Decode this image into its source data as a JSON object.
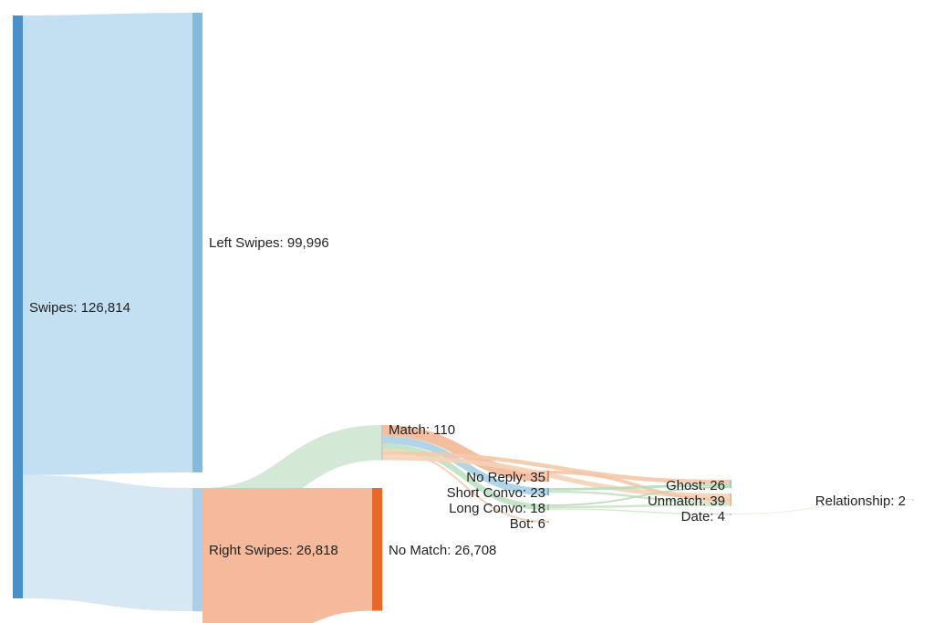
{
  "chart_data": {
    "type": "sankey",
    "nodes": [
      {
        "id": "swipes",
        "label": "Swipes: 126,814",
        "value": 126814,
        "color": "#4a8fc7"
      },
      {
        "id": "left",
        "label": "Left Swipes: 99,996",
        "value": 99996,
        "color": "#85b9de"
      },
      {
        "id": "right",
        "label": "Right Swipes: 26,818",
        "value": 26818,
        "color": "#a9d0e8"
      },
      {
        "id": "match",
        "label": "Match: 110",
        "value": 110,
        "color": "#c8c8c8"
      },
      {
        "id": "nomatch",
        "label": "No Match: 26,708",
        "value": 26708,
        "color": "#e8682a"
      },
      {
        "id": "noreply",
        "label": "No Reply: 35",
        "value": 35,
        "color": "#e98b5f"
      },
      {
        "id": "shortconvo",
        "label": "Short Convo: 23",
        "value": 23,
        "color": "#7ab0d6"
      },
      {
        "id": "longconvo",
        "label": "Long Convo: 18",
        "value": 18,
        "color": "#93c98e"
      },
      {
        "id": "bot",
        "label": "Bot: 6",
        "value": 6,
        "color": "#f2a272"
      },
      {
        "id": "ghost",
        "label": "Ghost: 26",
        "value": 26,
        "color": "#9ed3a8"
      },
      {
        "id": "unmatch",
        "label": "Unmatch: 39",
        "value": 39,
        "color": "#f2b68c"
      },
      {
        "id": "date",
        "label": "Date: 4",
        "value": 4,
        "color": "#b9dcae"
      },
      {
        "id": "relationship",
        "label": "Relationship: 2",
        "value": 2,
        "color": "#d6e8c8"
      }
    ],
    "links": [
      {
        "source": "swipes",
        "target": "left",
        "value": 99996,
        "color": "#c3dff2"
      },
      {
        "source": "swipes",
        "target": "right",
        "value": 26818,
        "color": "#d6e8f4"
      },
      {
        "source": "right",
        "target": "match",
        "value": 110,
        "color": "#cfe6d2"
      },
      {
        "source": "right",
        "target": "nomatch",
        "value": 26708,
        "color": "#f5b99b"
      },
      {
        "source": "match",
        "target": "noreply",
        "value": 35,
        "color": "#f2b896"
      },
      {
        "source": "match",
        "target": "shortconvo",
        "value": 23,
        "color": "#a9cfe6"
      },
      {
        "source": "match",
        "target": "longconvo",
        "value": 18,
        "color": "#bfe0c0"
      },
      {
        "source": "match",
        "target": "bot",
        "value": 6,
        "color": "#f6cdb3"
      },
      {
        "source": "match",
        "target": "ghost",
        "value": 13,
        "color": "#f4c9a8"
      },
      {
        "source": "match",
        "target": "unmatch",
        "value": 15,
        "color": "#f6d2b8"
      },
      {
        "source": "noreply",
        "target": "unmatch",
        "value": 10,
        "color": "#f4c4a6"
      },
      {
        "source": "shortconvo",
        "target": "ghost",
        "value": 8,
        "color": "#b8dcbd"
      },
      {
        "source": "shortconvo",
        "target": "unmatch",
        "value": 7,
        "color": "#c7e2c6"
      },
      {
        "source": "longconvo",
        "target": "ghost",
        "value": 5,
        "color": "#b5d9b4"
      },
      {
        "source": "longconvo",
        "target": "unmatch",
        "value": 7,
        "color": "#c9e3c3"
      },
      {
        "source": "longconvo",
        "target": "date",
        "value": 4,
        "color": "#cfe7c8"
      },
      {
        "source": "date",
        "target": "relationship",
        "value": 2,
        "color": "#e2efd7"
      }
    ]
  }
}
